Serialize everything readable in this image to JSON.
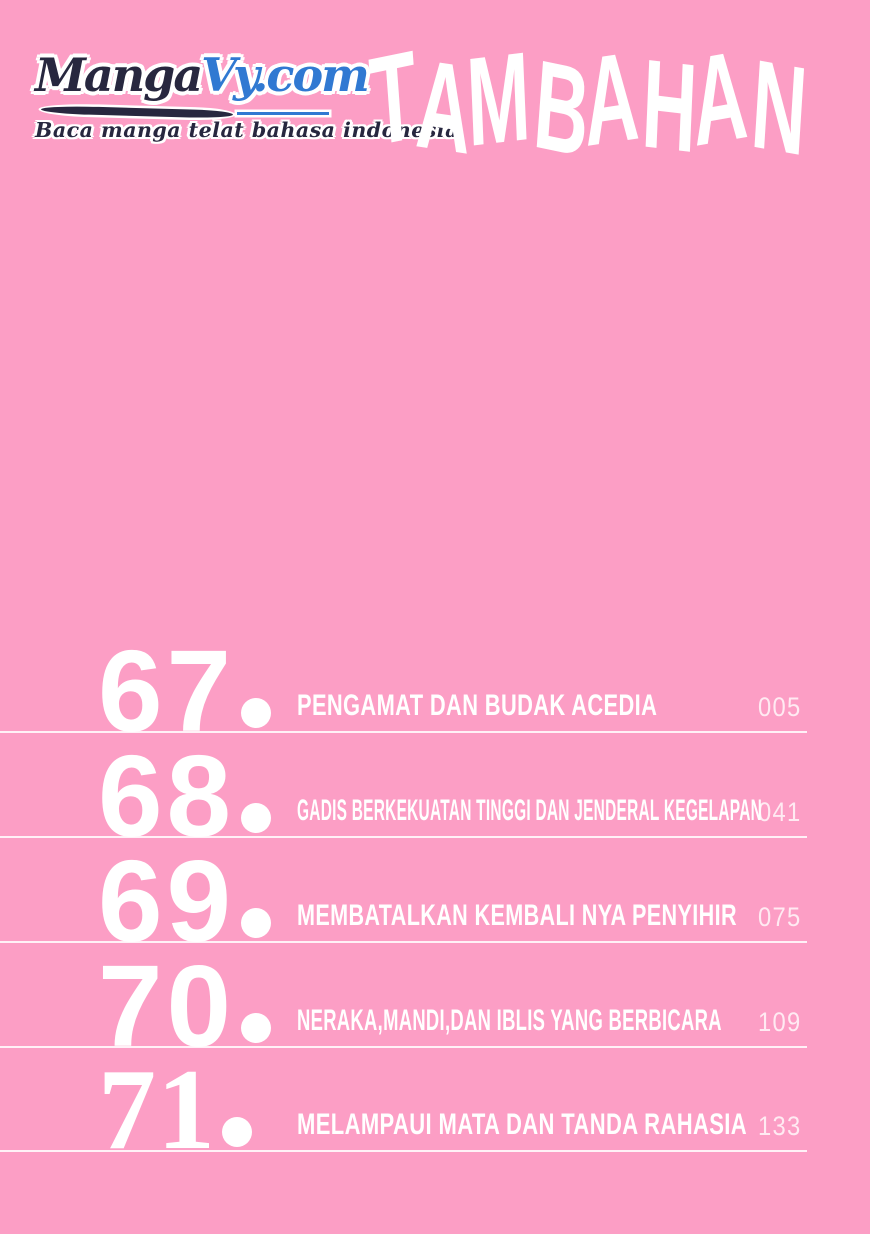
{
  "page": {
    "colors": {
      "background": "#fc9ec5",
      "text": "#ffffff",
      "rule": "#ffffff",
      "logo_dark": "#27273f",
      "logo_blue": "#3079d2"
    }
  },
  "logo": {
    "brand_dark": "Manga",
    "brand_blue": "Vy.com",
    "tagline": "Baca manga telat bahasa indonesia"
  },
  "header": {
    "title": "TAMBAHAN"
  },
  "toc": {
    "entries": [
      {
        "number": "67",
        "title": "PENGAMAT DAN BUDAK ACEDIA",
        "page": "005",
        "number_style": "sans"
      },
      {
        "number": "68",
        "title": "GADIS BERKEKUATAN TINGGI DAN JENDERAL KEGELAPAN",
        "page": "041",
        "number_style": "sans"
      },
      {
        "number": "69",
        "title": "MEMBATALKAN KEMBALI NYA PENYIHIR",
        "page": "075",
        "number_style": "sans"
      },
      {
        "number": "70",
        "title": "NERAKA,MANDI,DAN IBLIS YANG BERBICARA",
        "page": "109",
        "number_style": "sans"
      },
      {
        "number": "71",
        "title": "MELAMPAUI MATA DAN TANDA RAHASIA",
        "page": "133",
        "number_style": "serif"
      }
    ]
  }
}
